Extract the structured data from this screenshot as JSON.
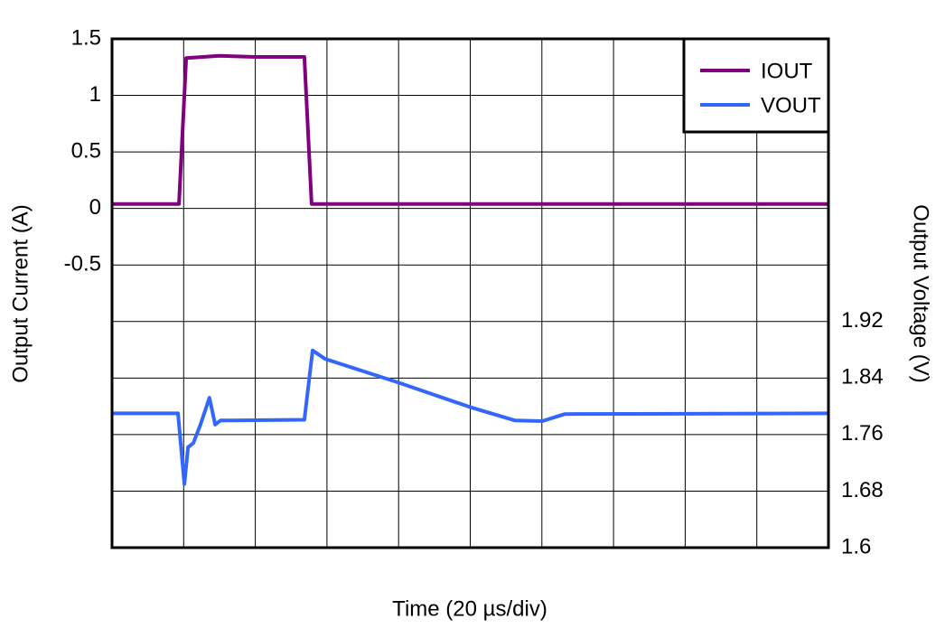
{
  "chart_data": {
    "type": "line",
    "x_label": "Time (20 µs/div)",
    "y_label": "Output Current (A)",
    "y2_label": "Output Voltage (V)",
    "xlim": [
      0,
      200
    ],
    "xticks": [
      0,
      20,
      40,
      60,
      80,
      100,
      120,
      140,
      160,
      180,
      200
    ],
    "ylim": [
      -3,
      1.5
    ],
    "yticks": [
      -0.5,
      0,
      0.5,
      1,
      1.5
    ],
    "y2lim": [
      1.6,
      2.32
    ],
    "y2ticks": [
      1.6,
      1.68,
      1.76,
      1.84,
      1.92
    ],
    "grid": true,
    "legend": "top-right",
    "series": [
      {
        "name": "IOUT",
        "color": "#800080",
        "x": [
          0,
          18.7,
          20.7,
          30,
          40,
          53.7,
          55.7,
          80,
          120,
          160,
          200
        ],
        "values": [
          0.04,
          0.04,
          1.33,
          1.35,
          1.34,
          1.34,
          0.04,
          0.04,
          0.04,
          0.04,
          0.04
        ]
      },
      {
        "name": "VOUT",
        "color": "#3366ff",
        "axis": "y2",
        "x": [
          0,
          18.4,
          20.2,
          21.2,
          22.7,
          24.7,
          27.2,
          28.8,
          30.3,
          53.7,
          56.0,
          59.5,
          79.7,
          99.9,
          112.5,
          120.1,
          126.4,
          200
        ],
        "values": [
          1.79,
          1.79,
          1.69,
          1.742,
          1.748,
          1.774,
          1.812,
          1.774,
          1.78,
          1.781,
          1.879,
          1.867,
          1.834,
          1.799,
          1.78,
          1.779,
          1.789,
          1.79
        ]
      }
    ]
  }
}
